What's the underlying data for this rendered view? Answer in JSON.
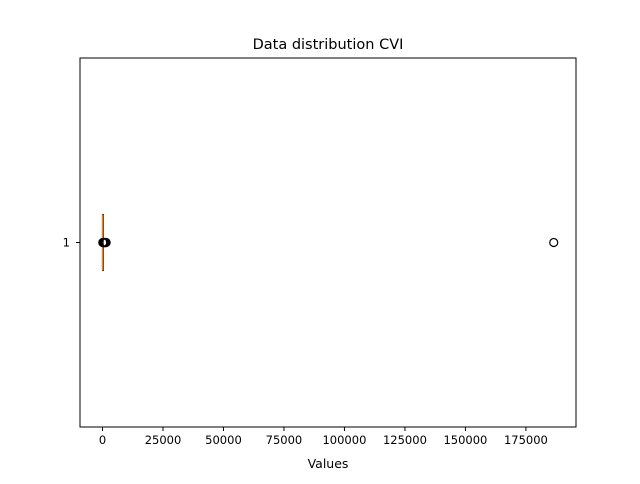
{
  "chart_data": {
    "type": "boxplot",
    "orientation": "horizontal",
    "title": "Data distribution CVI",
    "xlabel": "Values",
    "ylabel": "",
    "xlim": [
      -9300,
      195700
    ],
    "xticks": [
      0,
      25000,
      50000,
      75000,
      100000,
      125000,
      150000,
      175000
    ],
    "xtick_labels": [
      "0",
      "25000",
      "50000",
      "75000",
      "100000",
      "125000",
      "150000",
      "175000"
    ],
    "yticks": [
      1
    ],
    "ytick_labels": [
      "1"
    ],
    "grid": false,
    "box": {
      "position": 1,
      "whisker_low": 0,
      "q1": 0,
      "median": 0,
      "q3": 0,
      "whisker_high": 0
    },
    "outliers": [
      120,
      260,
      420,
      560,
      720,
      900,
      1100,
      1300,
      1500,
      186500
    ],
    "colors": {
      "median": "#ff7f0e",
      "box": "#000000",
      "outlier_edge": "#000000"
    }
  }
}
